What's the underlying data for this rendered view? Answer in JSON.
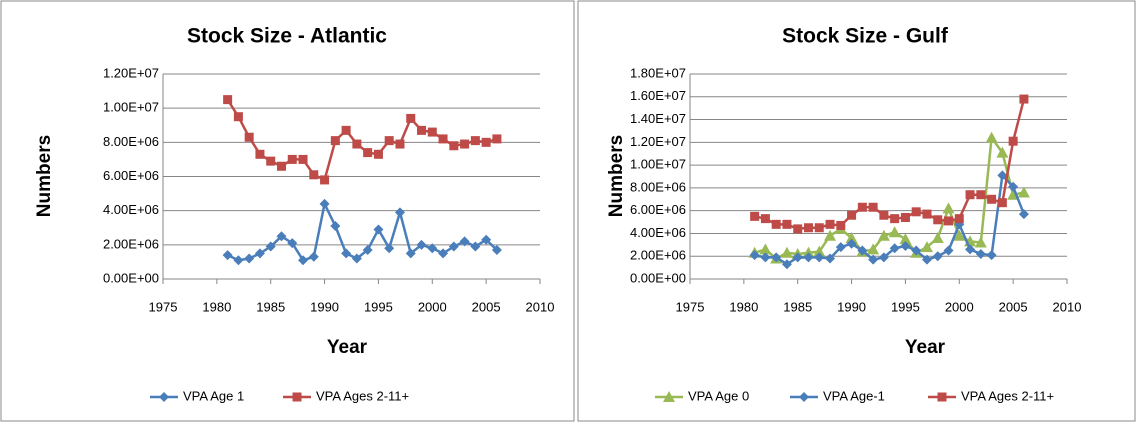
{
  "chart_data": [
    {
      "type": "line",
      "title": "Stock Size - Atlantic",
      "xlabel": "Year",
      "ylabel": "Numbers",
      "x": [
        1981,
        1982,
        1983,
        1984,
        1985,
        1986,
        1987,
        1988,
        1989,
        1990,
        1991,
        1992,
        1993,
        1994,
        1995,
        1996,
        1997,
        1998,
        1999,
        2000,
        2001,
        2002,
        2003,
        2004,
        2005,
        2006
      ],
      "xlim": [
        1975,
        2010
      ],
      "xticks": [
        1975,
        1980,
        1985,
        1990,
        1995,
        2000,
        2005,
        2010
      ],
      "ylim": [
        0,
        12000000
      ],
      "yticks": [
        {
          "value": 0,
          "label": "0.00E+00"
        },
        {
          "value": 2000000,
          "label": "2.00E+06"
        },
        {
          "value": 4000000,
          "label": "4.00E+06"
        },
        {
          "value": 6000000,
          "label": "6.00E+06"
        },
        {
          "value": 8000000,
          "label": "8.00E+06"
        },
        {
          "value": 10000000,
          "label": "1.00E+07"
        },
        {
          "value": 12000000,
          "label": "1.20E+07"
        }
      ],
      "grid": true,
      "legend": "bottom",
      "series": [
        {
          "name": "VPA Age 1",
          "color": "#4a7ebb",
          "marker": "diamond",
          "values": [
            1400000,
            1100000,
            1200000,
            1500000,
            1900000,
            2500000,
            2100000,
            1100000,
            1300000,
            4400000,
            3100000,
            1500000,
            1200000,
            1700000,
            2900000,
            1800000,
            3900000,
            1500000,
            2000000,
            1800000,
            1500000,
            1900000,
            2200000,
            1900000,
            2300000,
            1700000
          ]
        },
        {
          "name": "VPA Ages 2-11+",
          "color": "#be4b48",
          "marker": "square",
          "values": [
            10500000,
            9500000,
            8300000,
            7300000,
            6900000,
            6600000,
            7000000,
            7000000,
            6100000,
            5800000,
            8100000,
            8700000,
            7900000,
            7400000,
            7300000,
            8100000,
            7900000,
            9400000,
            8700000,
            8600000,
            8200000,
            7800000,
            7900000,
            8100000,
            8000000,
            8200000
          ]
        }
      ]
    },
    {
      "type": "line",
      "title": "Stock Size - Gulf",
      "xlabel": "Year",
      "ylabel": "Numbers",
      "x": [
        1981,
        1982,
        1983,
        1984,
        1985,
        1986,
        1987,
        1988,
        1989,
        1990,
        1991,
        1992,
        1993,
        1994,
        1995,
        1996,
        1997,
        1998,
        1999,
        2000,
        2001,
        2002,
        2003,
        2004,
        2005,
        2006
      ],
      "xlim": [
        1975,
        2010
      ],
      "xticks": [
        1975,
        1980,
        1985,
        1990,
        1995,
        2000,
        2005,
        2010
      ],
      "ylim": [
        0,
        18000000
      ],
      "yticks": [
        {
          "value": 0,
          "label": "0.00E+00"
        },
        {
          "value": 2000000,
          "label": "2.00E+06"
        },
        {
          "value": 4000000,
          "label": "4.00E+06"
        },
        {
          "value": 6000000,
          "label": "6.00E+06"
        },
        {
          "value": 8000000,
          "label": "8.00E+06"
        },
        {
          "value": 10000000,
          "label": "1.00E+07"
        },
        {
          "value": 12000000,
          "label": "1.20E+07"
        },
        {
          "value": 14000000,
          "label": "1.40E+07"
        },
        {
          "value": 16000000,
          "label": "1.60E+07"
        },
        {
          "value": 18000000,
          "label": "1.80E+07"
        }
      ],
      "grid": true,
      "legend": "bottom",
      "series": [
        {
          "name": "VPA Age 0",
          "color": "#98b954",
          "marker": "triangle",
          "values": [
            2300000,
            2600000,
            1800000,
            2300000,
            2200000,
            2300000,
            2400000,
            3800000,
            4400000,
            3600000,
            2400000,
            2600000,
            3800000,
            4100000,
            3500000,
            2300000,
            2800000,
            3600000,
            6200000,
            3800000,
            3300000,
            3200000,
            12400000,
            11100000,
            7400000,
            7600000
          ]
        },
        {
          "name": "VPA Age-1",
          "color": "#4a7ebb",
          "marker": "diamond",
          "values": [
            2100000,
            1900000,
            1900000,
            1300000,
            1900000,
            1900000,
            1900000,
            1800000,
            2800000,
            3100000,
            2500000,
            1700000,
            1900000,
            2700000,
            2900000,
            2500000,
            1700000,
            2000000,
            2500000,
            4800000,
            2600000,
            2200000,
            2100000,
            9100000,
            8100000,
            5700000
          ]
        },
        {
          "name": "VPA Ages 2-11+",
          "color": "#be4b48",
          "marker": "square",
          "values": [
            5500000,
            5300000,
            4800000,
            4800000,
            4400000,
            4500000,
            4500000,
            4800000,
            4700000,
            5600000,
            6300000,
            6300000,
            5600000,
            5300000,
            5400000,
            5900000,
            5700000,
            5200000,
            5100000,
            5300000,
            7400000,
            7400000,
            7000000,
            6700000,
            12100000,
            15800000
          ]
        }
      ]
    }
  ]
}
